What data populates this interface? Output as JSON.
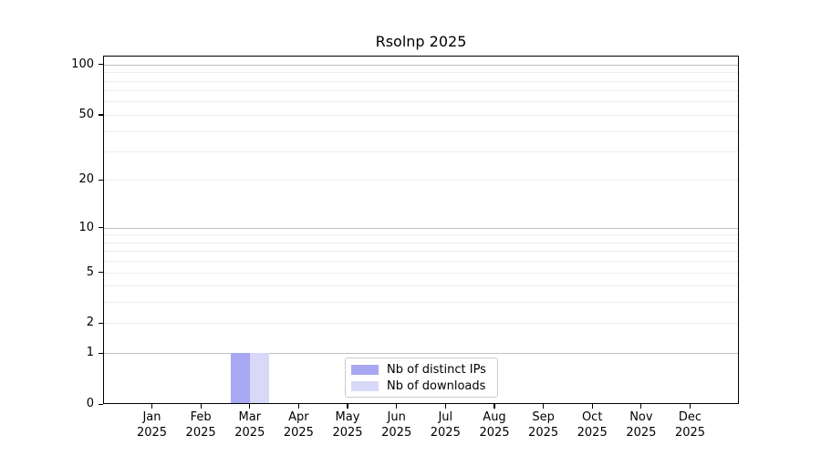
{
  "chart_data": {
    "type": "bar",
    "title": "Rsolnp 2025",
    "categories": [
      "Jan",
      "Feb",
      "Mar",
      "Apr",
      "May",
      "Jun",
      "Jul",
      "Aug",
      "Sep",
      "Oct",
      "Nov",
      "Dec"
    ],
    "category_year": "2025",
    "series": [
      {
        "name": "Nb of distinct IPs",
        "color": "#a8a8f2",
        "values": [
          0,
          0,
          1,
          0,
          0,
          0,
          0,
          0,
          0,
          0,
          0,
          0
        ]
      },
      {
        "name": "Nb of downloads",
        "color": "#d8d8f8",
        "values": [
          0,
          0,
          1,
          0,
          0,
          0,
          0,
          0,
          0,
          0,
          0,
          0
        ]
      }
    ],
    "y_axis": {
      "scale": "log1p",
      "ylim": [
        0,
        113
      ],
      "ticks": [
        0,
        1,
        2,
        5,
        10,
        20,
        50,
        100
      ],
      "grid_major": [
        1,
        10,
        100
      ],
      "grid_minor": [
        2,
        3,
        4,
        5,
        6,
        7,
        8,
        9,
        20,
        30,
        40,
        50,
        60,
        70,
        80,
        90
      ]
    },
    "legend": {
      "position": "bottom-center"
    },
    "grid": true,
    "colors": {
      "axis": "#000000",
      "background": "#ffffff"
    }
  }
}
